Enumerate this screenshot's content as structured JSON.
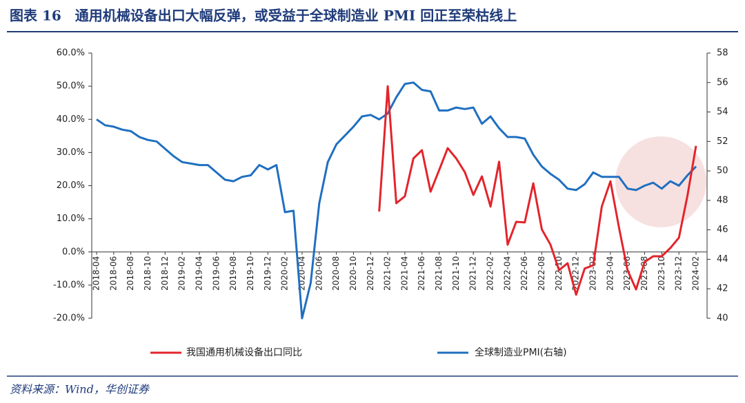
{
  "title": "图表 16　通用机械设备出口大幅反弹，或受益于全球制造业 PMI 回正至荣枯线上",
  "source": "资料来源：Wind，华创证券",
  "chart_data": {
    "type": "line",
    "categories": [
      "2018-04",
      null,
      "2018-06",
      null,
      "2018-08",
      null,
      "2018-10",
      null,
      "2018-12",
      null,
      "2019-02",
      null,
      "2019-04",
      null,
      "2019-06",
      null,
      "2019-08",
      null,
      "2019-10",
      null,
      "2019-12",
      null,
      "2020-02",
      null,
      "2020-04",
      null,
      "2020-06",
      null,
      "2020-08",
      null,
      "2020-10",
      null,
      "2020-12",
      null,
      "2021-02",
      null,
      "2021-04",
      null,
      "2021-06",
      null,
      "2021-08",
      null,
      "2021-10",
      null,
      "2021-12",
      null,
      "2022-02",
      null,
      "2022-04",
      null,
      "2022-06",
      null,
      "2022-08",
      null,
      "2022-10",
      null,
      "2022-12",
      null,
      "2023-02",
      null,
      "2023-04",
      null,
      "2023-06",
      null,
      "2023-08",
      null,
      "2023-10",
      null,
      "2023-12",
      null,
      "2024-02"
    ],
    "series": [
      {
        "name": "我国通用机械设备出口同比",
        "color": "#e3242b",
        "axis": "y",
        "values": [
          null,
          null,
          null,
          null,
          null,
          null,
          null,
          null,
          null,
          null,
          null,
          null,
          null,
          null,
          null,
          null,
          null,
          null,
          null,
          null,
          null,
          null,
          null,
          null,
          null,
          null,
          null,
          null,
          null,
          null,
          null,
          null,
          null,
          12.2,
          50.0,
          14.7,
          16.8,
          28.2,
          30.7,
          18.2,
          24.7,
          31.3,
          28.2,
          24.1,
          17.2,
          22.8,
          13.7,
          27.2,
          2.2,
          9.1,
          8.9,
          20.7,
          6.8,
          2.2,
          -5.5,
          -3.4,
          -12.9,
          -5.0,
          -4.0,
          13.7,
          21.3,
          7.4,
          -5.5,
          -11.3,
          -3.0,
          -1.3,
          -1.3,
          1.2,
          4.3,
          17.0,
          32.0
        ]
      },
      {
        "name": "全球制造业PMI(右轴)",
        "color": "#1f6fc0",
        "axis": "y2",
        "values": [
          53.5,
          53.1,
          53.0,
          52.8,
          52.7,
          52.3,
          52.1,
          52.0,
          51.5,
          51.0,
          50.6,
          50.5,
          50.4,
          50.4,
          49.9,
          49.4,
          49.3,
          49.6,
          49.7,
          50.4,
          50.1,
          50.4,
          47.2,
          47.3,
          40.0,
          42.4,
          47.8,
          50.6,
          51.8,
          52.4,
          53.0,
          53.7,
          53.8,
          53.5,
          53.9,
          55.0,
          55.9,
          56.0,
          55.5,
          55.4,
          54.1,
          54.1,
          54.3,
          54.2,
          54.3,
          53.2,
          53.7,
          52.9,
          52.3,
          52.3,
          52.2,
          51.1,
          50.3,
          49.8,
          49.4,
          48.8,
          48.7,
          49.1,
          49.9,
          49.6,
          49.6,
          49.6,
          48.8,
          48.7,
          49.0,
          49.2,
          48.8,
          49.3,
          49.0,
          49.7,
          50.3
        ]
      }
    ],
    "ylim": [
      -20,
      60
    ],
    "yticks": [
      {
        "value": -20,
        "label": "-20.0%"
      },
      {
        "value": -10,
        "label": "-10.0%"
      },
      {
        "value": 0,
        "label": "0.0%"
      },
      {
        "value": 10,
        "label": "10.0%"
      },
      {
        "value": 20,
        "label": "20.0%"
      },
      {
        "value": 30,
        "label": "30.0%"
      },
      {
        "value": 40,
        "label": "40.0%"
      },
      {
        "value": 50,
        "label": "50.0%"
      },
      {
        "value": 60,
        "label": "60.0%"
      }
    ],
    "y2lim": [
      40,
      58
    ],
    "y2ticks": [
      40,
      42,
      44,
      46,
      48,
      50,
      52,
      54,
      56,
      58
    ],
    "grid": false
  }
}
